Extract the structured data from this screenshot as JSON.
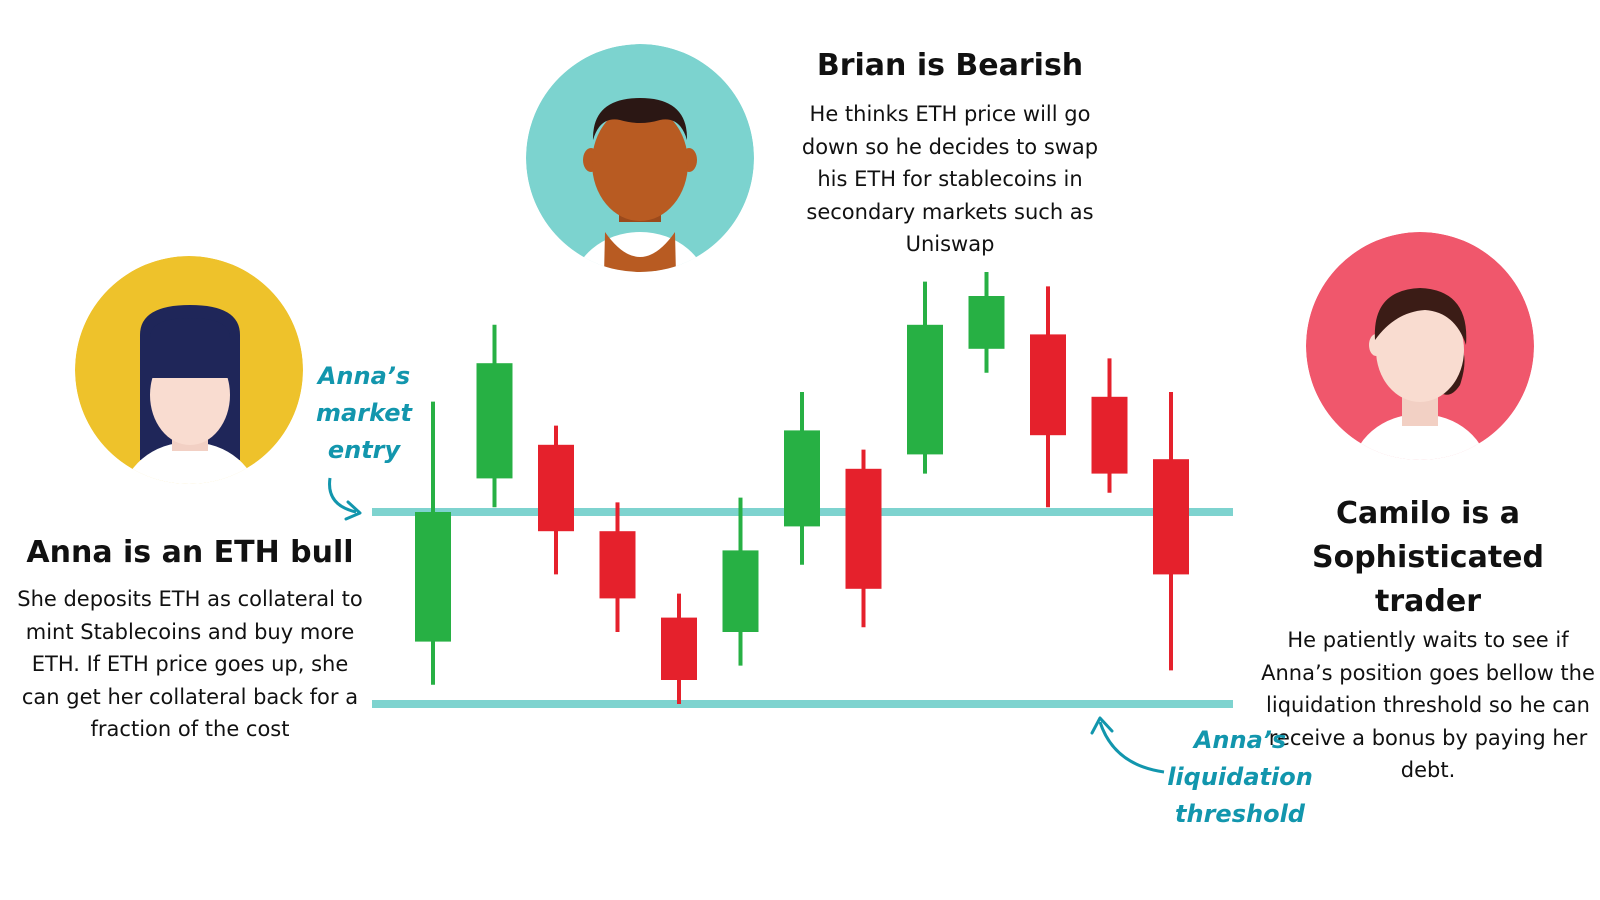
{
  "brian": {
    "title": "Brian is Bearish",
    "description": "He thinks ETH price will go down so he decides to swap his ETH for stablecoins in secondary markets such as Uniswap",
    "circle_color": "#7cd3cf"
  },
  "anna": {
    "title": "Anna is an ETH bull",
    "description": "She deposits ETH as collateral to mint Stablecoins and buy more ETH. If ETH price goes up, she can get her collateral back for a fraction of the cost",
    "circle_color": "#eec22b"
  },
  "camilo": {
    "title_line1": "Camilo is a",
    "title_line2": "Sophisticated trader",
    "description": "He patiently waits to see if Anna’s position goes bellow the liquidation threshold so he can receive a bonus by paying her debt.",
    "circle_color": "#f0576c"
  },
  "annotations": {
    "market_entry": [
      "Anna’s",
      "market",
      "entry"
    ],
    "liquidation": [
      "Anna’s",
      "liquidation",
      "threshold"
    ]
  },
  "colors": {
    "bull": "#27b044",
    "bear": "#e5212c",
    "threshold_line": "#7ed3cf",
    "annotation": "#1296ad"
  },
  "chart_data": {
    "type": "candlestick",
    "y_scale": "price (unitless)",
    "levels": {
      "market_entry": 50,
      "liquidation_threshold": 10
    },
    "candles": [
      {
        "open": 23,
        "close": 50,
        "high": 73,
        "low": 14,
        "dir": "up"
      },
      {
        "open": 57,
        "close": 81,
        "high": 89,
        "low": 51,
        "dir": "up"
      },
      {
        "open": 64,
        "close": 46,
        "high": 68,
        "low": 37,
        "dir": "down"
      },
      {
        "open": 46,
        "close": 32,
        "high": 52,
        "low": 25,
        "dir": "down"
      },
      {
        "open": 28,
        "close": 15,
        "high": 33,
        "low": 10,
        "dir": "down"
      },
      {
        "open": 25,
        "close": 42,
        "high": 53,
        "low": 18,
        "dir": "up"
      },
      {
        "open": 47,
        "close": 67,
        "high": 75,
        "low": 39,
        "dir": "up"
      },
      {
        "open": 59,
        "close": 34,
        "high": 63,
        "low": 26,
        "dir": "down"
      },
      {
        "open": 62,
        "close": 89,
        "high": 98,
        "low": 58,
        "dir": "up"
      },
      {
        "open": 84,
        "close": 95,
        "high": 100,
        "low": 79,
        "dir": "up"
      },
      {
        "open": 87,
        "close": 66,
        "high": 97,
        "low": 51,
        "dir": "down"
      },
      {
        "open": 74,
        "close": 58,
        "high": 82,
        "low": 54,
        "dir": "down"
      },
      {
        "open": 61,
        "close": 37,
        "high": 75,
        "low": 17,
        "dir": "down"
      }
    ]
  }
}
